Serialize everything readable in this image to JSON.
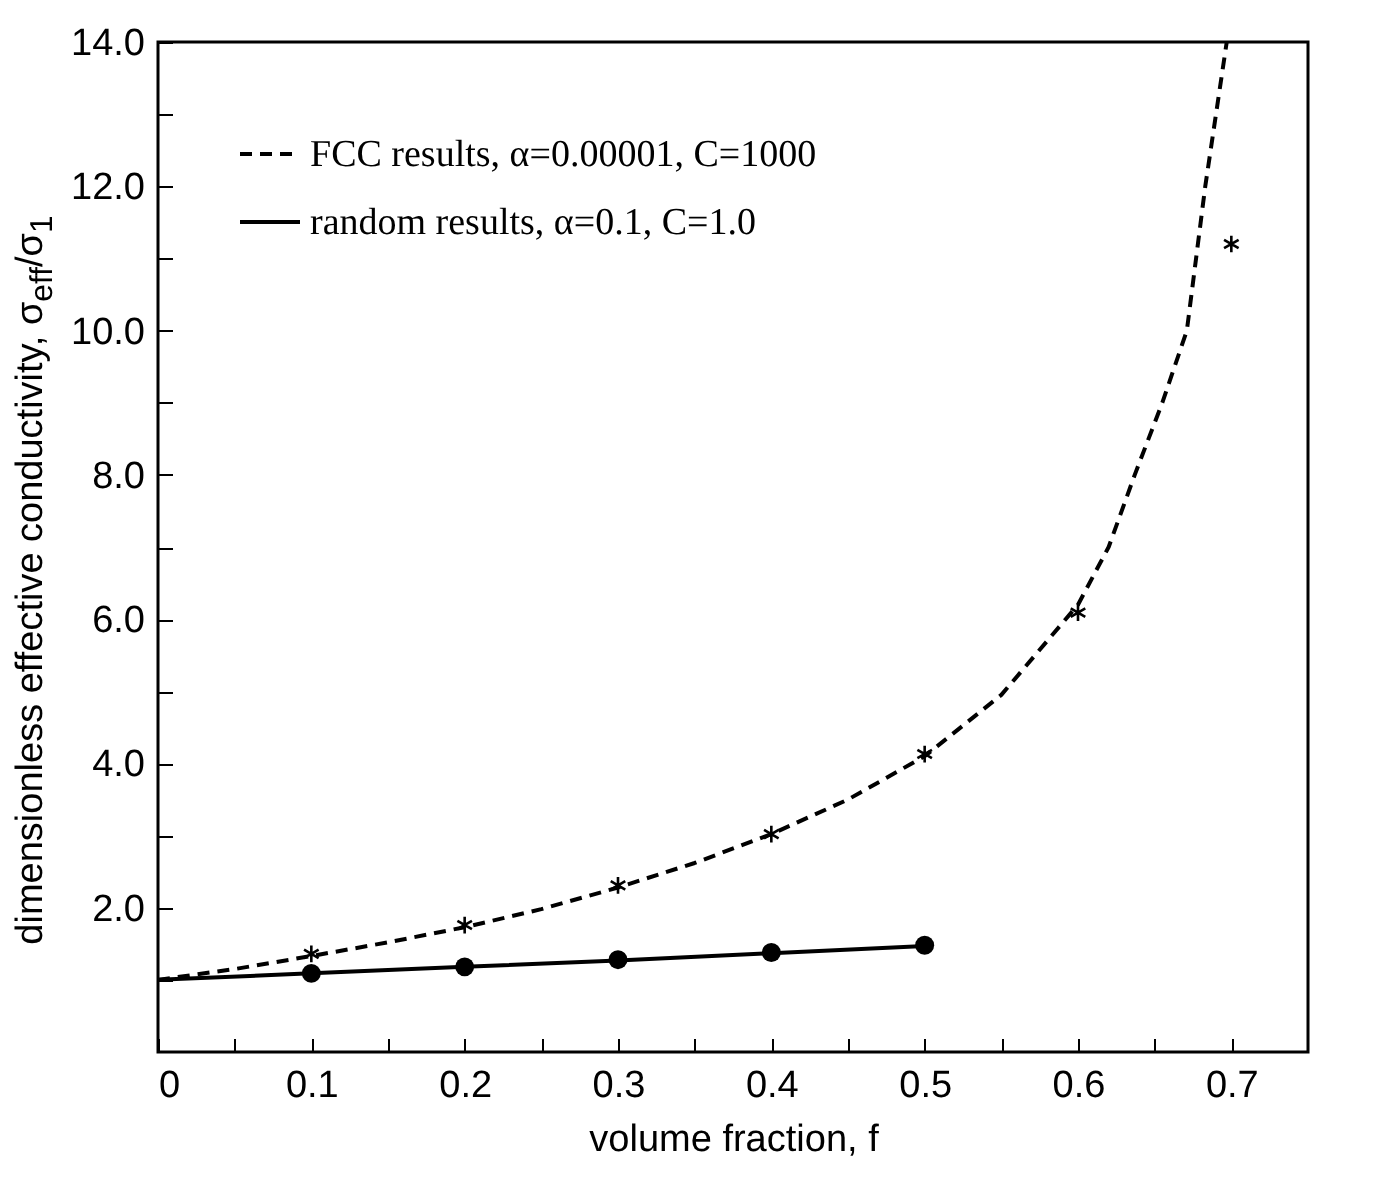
{
  "chart_data": {
    "type": "line",
    "xlabel": "volume fraction, f",
    "ylabel": "dimensionless effective conductivity, σ$_{eff}$/σ$_{1}$",
    "xlim": [
      0,
      0.75
    ],
    "ylim": [
      0,
      14
    ],
    "xticks": [
      0,
      {
        "value": 0.05,
        "label": null
      },
      0.1,
      {
        "value": 0.15,
        "label": null
      },
      0.2,
      {
        "value": 0.25,
        "label": null
      },
      0.3,
      {
        "value": 0.35,
        "label": null
      },
      0.4,
      {
        "value": 0.45,
        "label": null
      },
      0.5,
      {
        "value": 0.55,
        "label": null
      },
      0.6,
      {
        "value": 0.65,
        "label": null
      },
      0.7
    ],
    "yticks": [
      {
        "value": 1,
        "label": null
      },
      {
        "value": 2,
        "label": "2.0"
      },
      {
        "value": 3,
        "label": null
      },
      {
        "value": 4,
        "label": "4.0"
      },
      {
        "value": 5,
        "label": null
      },
      {
        "value": 6,
        "label": "6.0"
      },
      {
        "value": 7,
        "label": null
      },
      {
        "value": 8,
        "label": "8.0"
      },
      {
        "value": 9,
        "label": null
      },
      {
        "value": 10,
        "label": "10.0"
      },
      {
        "value": 11,
        "label": null
      },
      {
        "value": 12,
        "label": "12.0"
      },
      {
        "value": 13,
        "label": null
      },
      {
        "value": 14,
        "label": "14.0"
      }
    ],
    "grid": false,
    "legend": "top left",
    "series": [
      {
        "name": "FCC results, α=0.00001, C=1000",
        "type": "line",
        "line_style": "dashed",
        "color": "#000000",
        "x": [
          0,
          0.05,
          0.1,
          0.15,
          0.2,
          0.25,
          0.3,
          0.35,
          0.4,
          0.45,
          0.5,
          0.55,
          0.6,
          0.62,
          0.637,
          0.655,
          0.671,
          0.677,
          0.683,
          0.69,
          0.697
        ],
        "values": [
          1.0,
          1.15,
          1.33,
          1.52,
          1.73,
          1.98,
          2.28,
          2.62,
          3.02,
          3.5,
          4.1,
          4.95,
          6.2,
          7.0,
          8.0,
          9.0,
          10.0,
          11.0,
          12.0,
          13.0,
          14.0
        ]
      },
      {
        "name": "random results, α=0.1, C=1.0",
        "type": "line",
        "line_style": "solid",
        "color": "#000000",
        "x": [
          0,
          0.1,
          0.2,
          0.3,
          0.4,
          0.5
        ],
        "values": [
          1.0,
          1.09,
          1.18,
          1.27,
          1.37,
          1.47
        ]
      },
      {
        "type": "scatter",
        "marker": "cross",
        "color": "#000000",
        "x": [
          0.1,
          0.2,
          0.3,
          0.4,
          0.5,
          0.6,
          0.7
        ],
        "values": [
          1.36,
          1.76,
          2.31,
          3.02,
          4.13,
          6.09,
          11.2
        ]
      },
      {
        "type": "scatter",
        "marker": "circle",
        "color": "#000000",
        "x": [
          0.1,
          0.2,
          0.3,
          0.4,
          0.5
        ],
        "values": [
          1.09,
          1.18,
          1.28,
          1.38,
          1.48
        ]
      }
    ]
  }
}
